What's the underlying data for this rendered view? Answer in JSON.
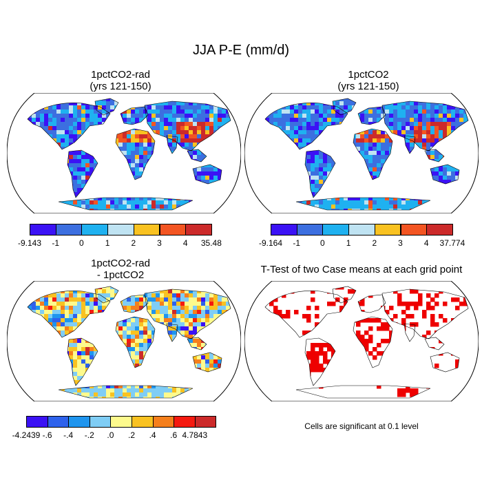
{
  "title": "JJA P-E (mm/d)",
  "panels": [
    {
      "title_line1": "1pctCO2-rad",
      "title_line2": "(yrs 121-150)"
    },
    {
      "title_line1": "1pctCO2",
      "title_line2": "(yrs 121-150)"
    },
    {
      "title_line1": "1pctCO2-rad",
      "title_line2": "- 1pctCO2"
    },
    {
      "title_line1": "T-Test of two Case means at each grid point",
      "title_line2": ""
    }
  ],
  "colorbars": [
    {
      "labels": [
        "-9.143",
        "-1",
        "0",
        "1",
        "2",
        "3",
        "4",
        "35.48"
      ],
      "colors": [
        "#3b12f5",
        "#3c6fe0",
        "#1fb1f0",
        "#bfe3f2",
        "#f9c221",
        "#f35522",
        "#cc2a2a"
      ]
    },
    {
      "labels": [
        "-9.164",
        "-1",
        "0",
        "1",
        "2",
        "3",
        "4",
        "37.774"
      ],
      "colors": [
        "#3b12f5",
        "#3c6fe0",
        "#1fb1f0",
        "#bfe3f2",
        "#f9c221",
        "#f35522",
        "#cc2a2a"
      ]
    },
    {
      "labels": [
        "-4.2439",
        "-.6",
        "-.4",
        "-.2",
        ".0",
        ".2",
        ".4",
        ".6",
        "4.7843"
      ],
      "colors": [
        "#3b12f5",
        "#2e62ec",
        "#1f95ee",
        "#7fcdf5",
        "#fdfa8d",
        "#f9c221",
        "#f57f1c",
        "#f51a10",
        "#cc2a2a"
      ]
    }
  ],
  "significance_note": "Cells are significant at 0.1 level",
  "significance_color": "#ee0000"
}
